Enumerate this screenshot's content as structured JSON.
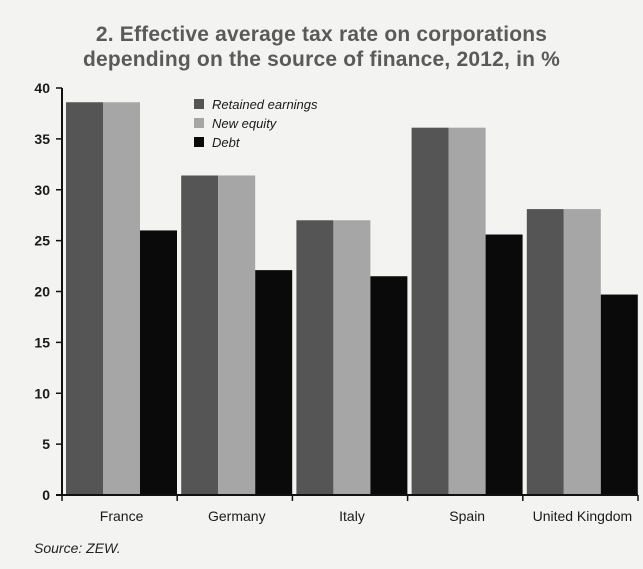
{
  "chart_data": {
    "type": "bar",
    "title_line1": "2. Effective average tax rate on corporations",
    "title_line2": "depending on the source of finance, 2012, in %",
    "categories": [
      "France",
      "Germany",
      "Italy",
      "Spain",
      "United Kingdom"
    ],
    "series": [
      {
        "name": "Retained earnings",
        "color": "#555555",
        "values": [
          38.6,
          31.4,
          27.0,
          36.1,
          28.1
        ]
      },
      {
        "name": "New equity",
        "color": "#a6a6a6",
        "values": [
          38.6,
          31.4,
          27.0,
          36.1,
          28.1
        ]
      },
      {
        "name": "Debt",
        "color": "#0a0a0a",
        "values": [
          26.0,
          22.1,
          21.5,
          25.6,
          19.7
        ]
      }
    ],
    "ylim": [
      0,
      40
    ],
    "yticks": [
      0,
      5,
      10,
      15,
      20,
      25,
      30,
      35,
      40
    ],
    "xlabel": "",
    "ylabel": "",
    "legend_position": "top-left",
    "grid": false
  },
  "source": "Source: ZEW."
}
